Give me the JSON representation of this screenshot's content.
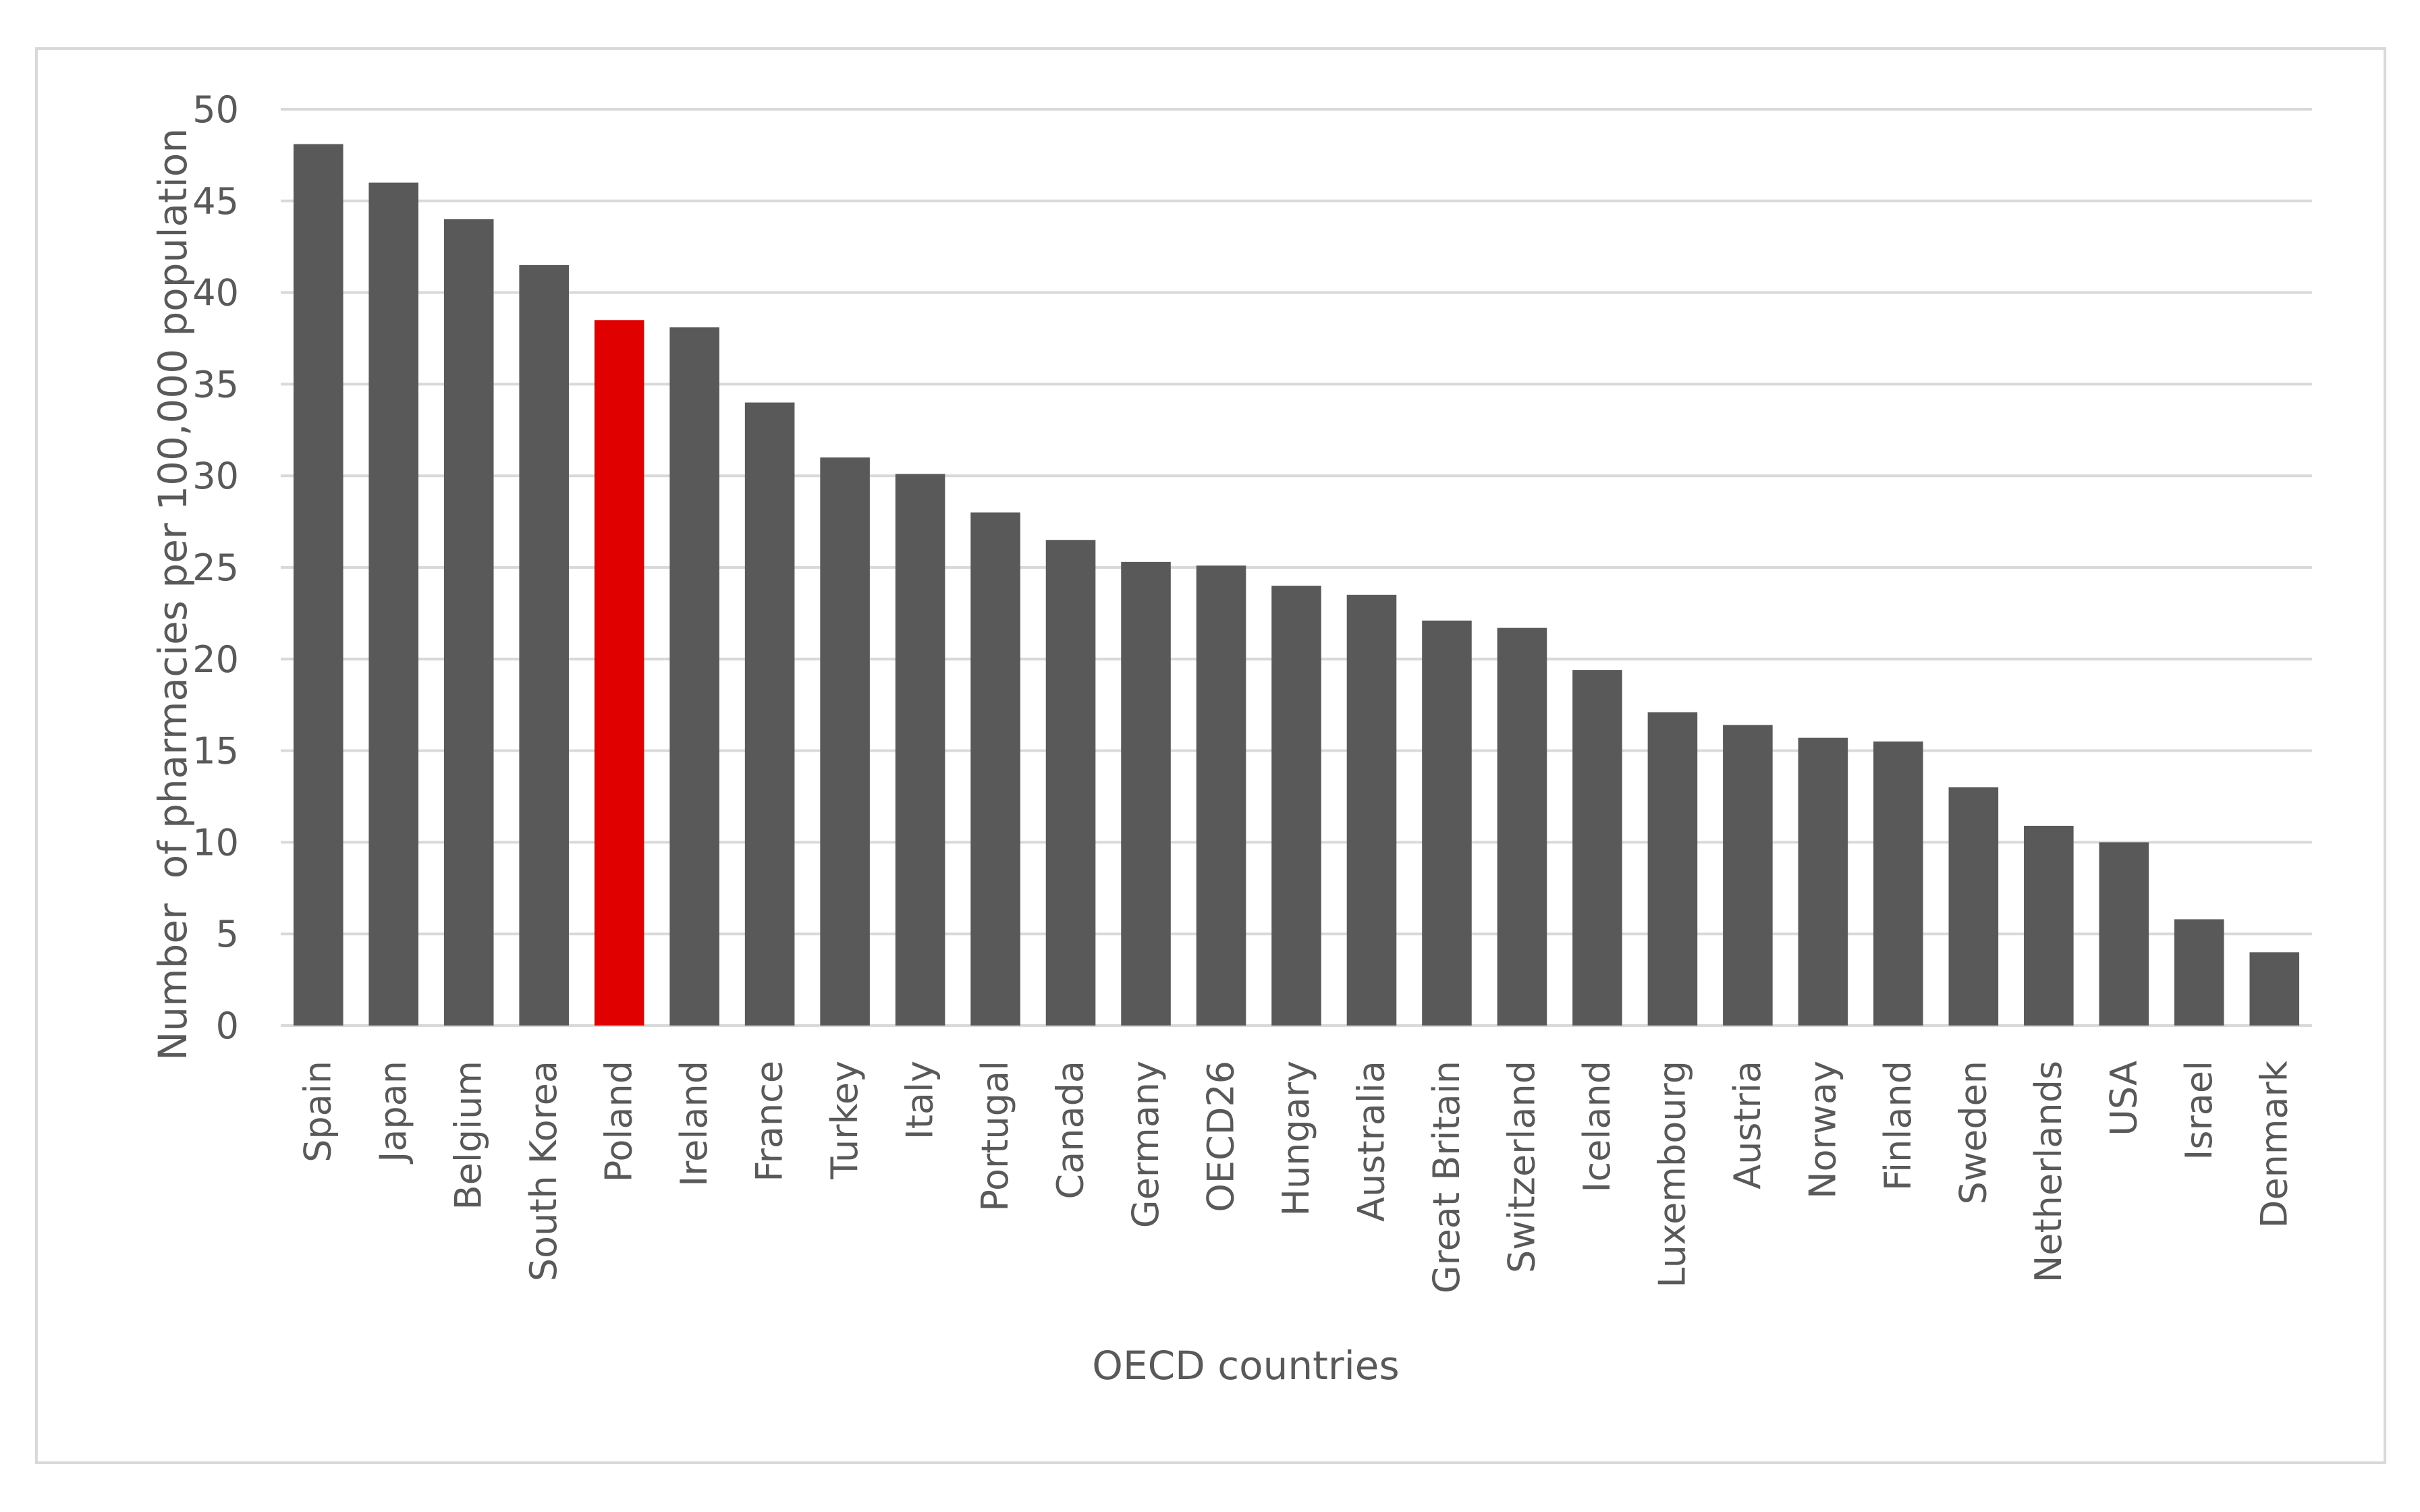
{
  "chart_data": {
    "type": "bar",
    "categories": [
      "Spain",
      "Japan",
      "Belgium",
      "South Korea",
      "Poland",
      "Ireland",
      "France",
      "Turkey",
      "Italy",
      "Portugal",
      "Canada",
      "Germany",
      "OECD26",
      "Hungary",
      "Australia",
      "Great Britain",
      "Switzerland",
      "Iceland",
      "Luxembourg",
      "Austria",
      "Norway",
      "Finland",
      "Sweden",
      "Netherlands",
      "USA",
      "Israel",
      "Denmark"
    ],
    "values": [
      48.1,
      46.0,
      44.0,
      41.5,
      38.5,
      38.1,
      34.0,
      31.0,
      30.1,
      28.0,
      26.5,
      25.3,
      25.1,
      24.0,
      23.5,
      22.1,
      21.7,
      19.4,
      17.1,
      16.4,
      15.7,
      15.5,
      13.0,
      10.9,
      10.0,
      5.8,
      4.0
    ],
    "title": "",
    "xlabel": "OECD countries",
    "ylabel": "Number  of pharmacies per 100,000 population",
    "ylim": [
      0,
      50
    ],
    "yticks": [
      0,
      5,
      10,
      15,
      20,
      25,
      30,
      35,
      40,
      45,
      50
    ],
    "grid": true,
    "legend": "none",
    "bar_color": "#595959",
    "highlight_category": "Poland",
    "highlight_color": "#e00000"
  }
}
